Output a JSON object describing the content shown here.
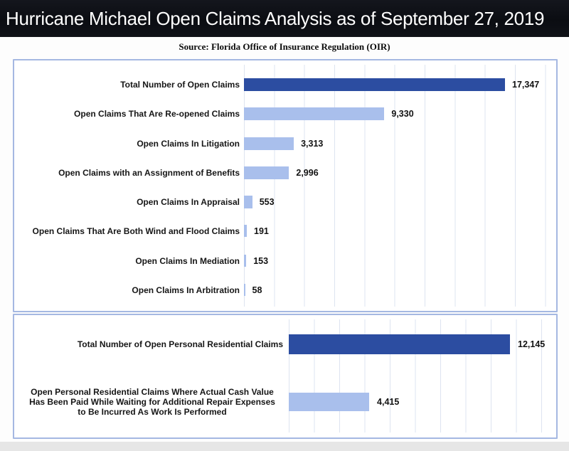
{
  "header": {
    "title": "Hurricane Michael Open Claims Analysis as of September 27, 2019"
  },
  "source_line": "Source: Florida Office of Insurance Regulation (OIR)",
  "colors": {
    "title_bg": "#0d0f14",
    "title_text": "#ffffff",
    "panel_border": "#a5b8e2",
    "gridline": "#dde4f0",
    "dark_bar": "#2c4da1",
    "light_bar": "#a9bfec",
    "label_text": "#161616"
  },
  "chart_data": [
    {
      "type": "bar",
      "orientation": "horizontal",
      "panel": "all-open-claims",
      "title": "",
      "xlabel": "",
      "ylabel": "",
      "xlim": [
        0,
        20000
      ],
      "grid": true,
      "gridline_interval": 2000,
      "legend": "none",
      "categories": [
        "Total Number of Open Claims",
        "Open Claims That Are Re-opened Claims",
        "Open Claims In Litigation",
        "Open Claims with an Assignment of Benefits",
        "Open Claims In Appraisal",
        "Open Claims That Are Both Wind and Flood Claims",
        "Open Claims In Mediation",
        "Open Claims In Arbitration"
      ],
      "values": [
        17347,
        9330,
        3313,
        2996,
        553,
        191,
        153,
        58
      ],
      "value_labels": [
        "17,347",
        "9,330",
        "3,313",
        "2,996",
        "553",
        "191",
        "153",
        "58"
      ],
      "bar_styles": [
        "dark",
        "light",
        "light",
        "light",
        "light",
        "light",
        "light",
        "light"
      ]
    },
    {
      "type": "bar",
      "orientation": "horizontal",
      "panel": "personal-residential-claims",
      "title": "",
      "xlabel": "",
      "ylabel": "",
      "xlim": [
        0,
        14000
      ],
      "grid": true,
      "legend": "none",
      "categories": [
        "Total Number of Open Personal Residential Claims",
        "Open Personal Residential Claims Where Actual Cash Value Has Been Paid While Waiting for Additional Repair Expenses to Be Incurred As Work Is Performed"
      ],
      "category_lines": [
        [
          "Total Number of Open Personal Residential Claims"
        ],
        [
          "Open Personal Residential Claims Where Actual Cash Value",
          "Has Been Paid While Waiting for Additional Repair Expenses",
          "to Be Incurred As Work Is Performed"
        ]
      ],
      "values": [
        12145,
        4415
      ],
      "value_labels": [
        "12,145",
        "4,415"
      ],
      "bar_styles": [
        "dark",
        "light"
      ]
    }
  ]
}
